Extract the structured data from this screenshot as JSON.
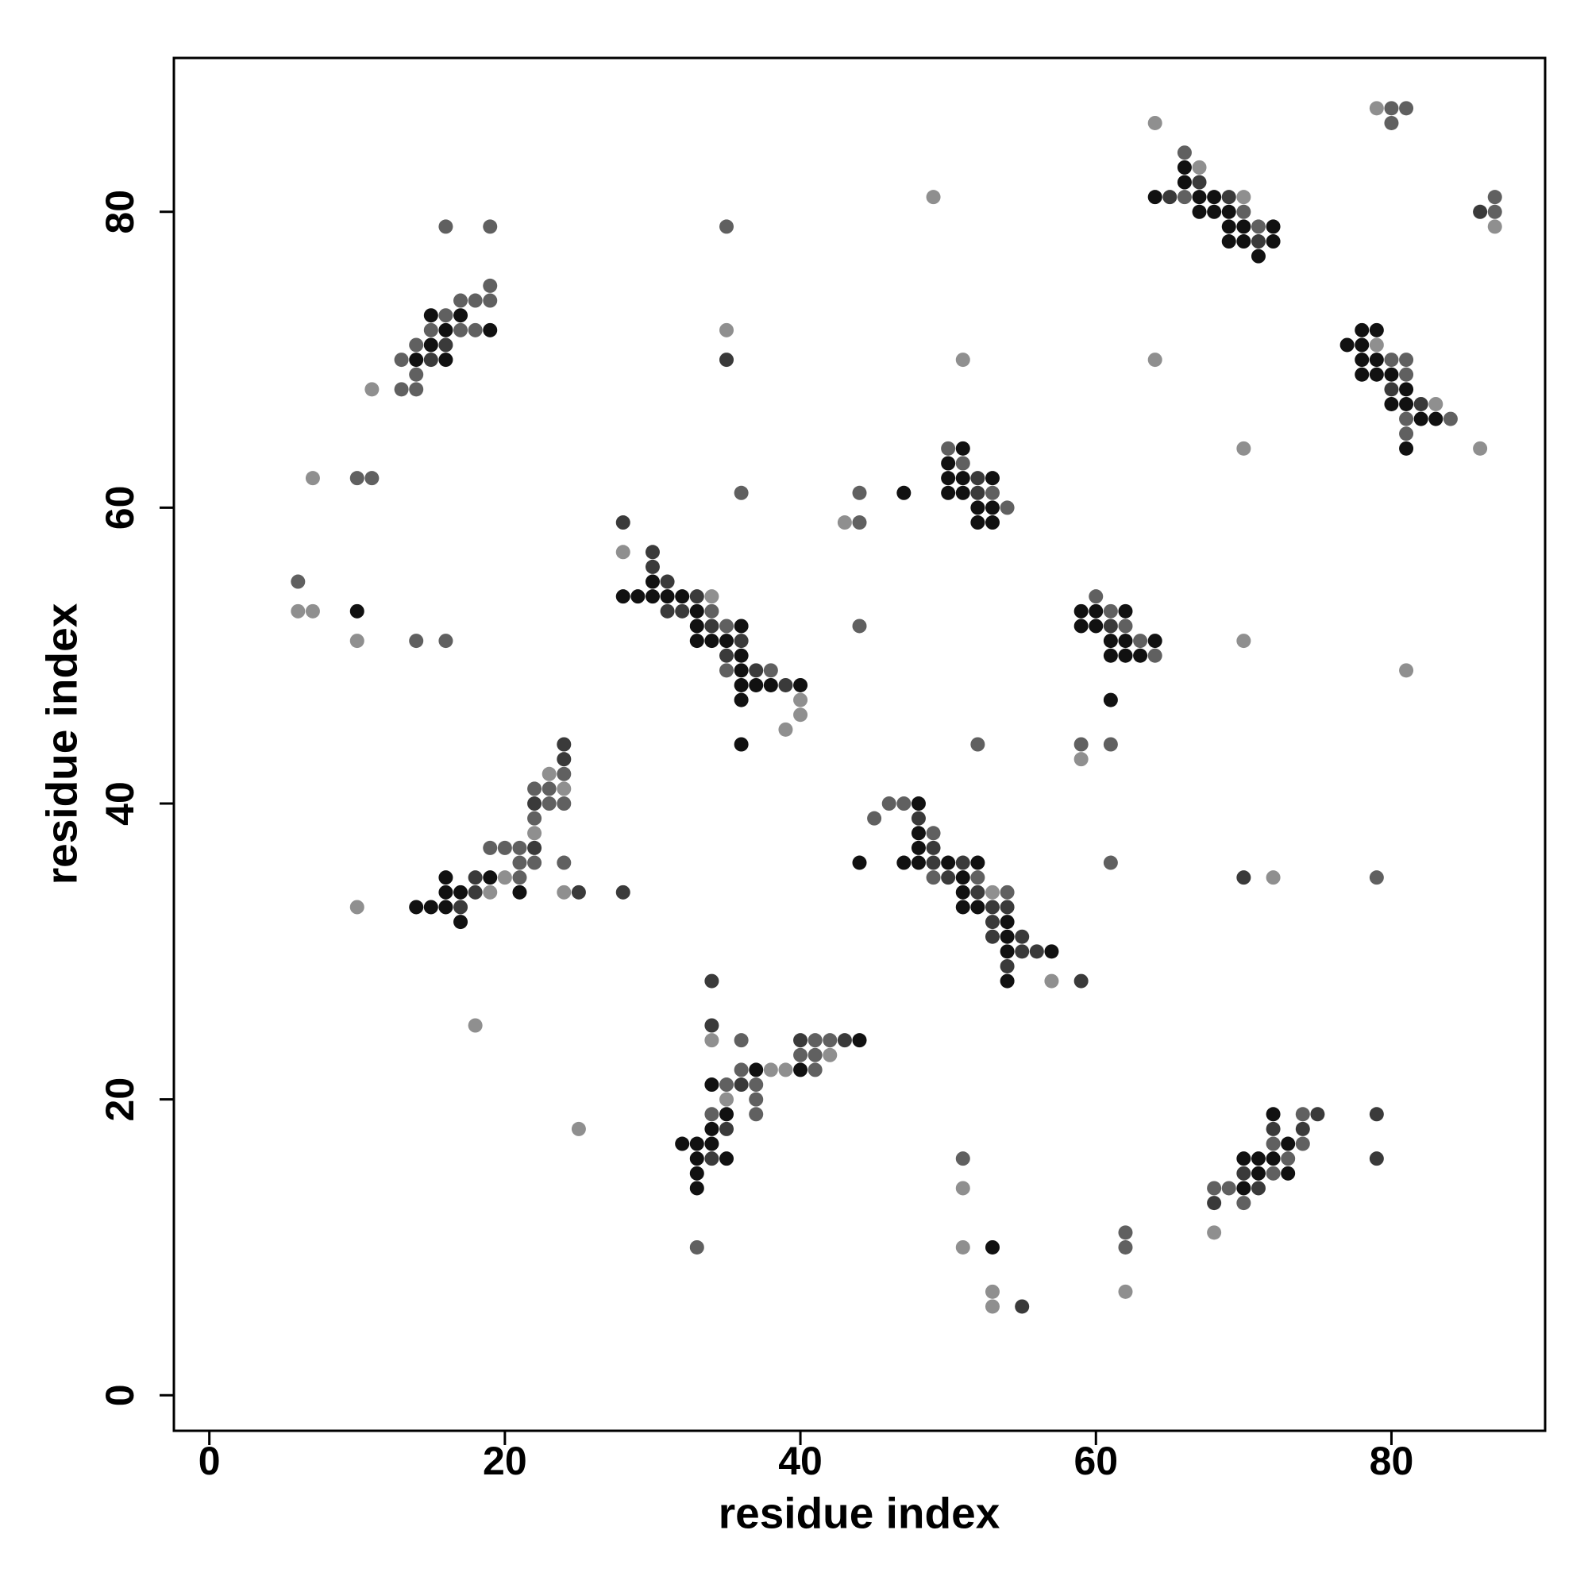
{
  "chart_data": {
    "type": "scatter",
    "xlabel": "residue index",
    "ylabel": "residue index",
    "xlim": [
      -2.4,
      90.4
    ],
    "ylim": [
      -2.4,
      90.4
    ],
    "xticks": [
      0,
      20,
      40,
      60,
      80
    ],
    "yticks": [
      0,
      20,
      40,
      60,
      80
    ],
    "grid": false,
    "series": [
      {
        "color": "#111111",
        "x": [
          15,
          17,
          16,
          19,
          15,
          14,
          16,
          10,
          30,
          28,
          29,
          30,
          31,
          32,
          33,
          33,
          36,
          33,
          34,
          35,
          36,
          36,
          36,
          37,
          38,
          40,
          36,
          36,
          16,
          19,
          16,
          17,
          21,
          14,
          15,
          16,
          17,
          37,
          40,
          34,
          35,
          34,
          32,
          33,
          34,
          33,
          35,
          33,
          33,
          44,
          48,
          48,
          48,
          44,
          47,
          48,
          50,
          52,
          51,
          51,
          51,
          52,
          54,
          54,
          54,
          57,
          54,
          51,
          50,
          50,
          51,
          53,
          50,
          51,
          47,
          52,
          53,
          52,
          53,
          59,
          60,
          62,
          59,
          60,
          61,
          62,
          64,
          61,
          62,
          63,
          61,
          66,
          66,
          64,
          67,
          68,
          67,
          68,
          69,
          69,
          70,
          72,
          69,
          70,
          72,
          71,
          78,
          79,
          77,
          78,
          78,
          79,
          78,
          79,
          80,
          81,
          80,
          81,
          82,
          83,
          81,
          72,
          73,
          70,
          71,
          72,
          71,
          73,
          70,
          53
        ],
        "y": [
          73,
          73,
          72,
          72,
          71,
          70,
          70,
          53,
          55,
          54,
          54,
          54,
          54,
          54,
          53,
          52,
          52,
          51,
          51,
          51,
          50,
          49,
          48,
          48,
          48,
          48,
          47,
          44,
          35,
          35,
          34,
          34,
          34,
          33,
          33,
          33,
          32,
          22,
          22,
          21,
          19,
          18,
          17,
          17,
          17,
          16,
          16,
          15,
          14,
          24,
          40,
          38,
          37,
          36,
          36,
          36,
          36,
          36,
          35,
          34,
          33,
          33,
          32,
          31,
          30,
          30,
          28,
          64,
          63,
          62,
          62,
          62,
          61,
          61,
          61,
          60,
          60,
          59,
          59,
          53,
          53,
          53,
          52,
          52,
          51,
          51,
          51,
          50,
          50,
          50,
          47,
          83,
          82,
          81,
          81,
          81,
          80,
          80,
          80,
          79,
          79,
          79,
          78,
          78,
          78,
          77,
          72,
          72,
          71,
          71,
          70,
          70,
          69,
          69,
          69,
          68,
          67,
          67,
          66,
          66,
          64,
          19,
          17,
          16,
          16,
          16,
          15,
          15,
          14,
          10
        ]
      },
      {
        "color": "#3a3a3a",
        "x": [
          16,
          15,
          28,
          30,
          30,
          31,
          33,
          31,
          32,
          34,
          36,
          35,
          37,
          39,
          24,
          24,
          22,
          22,
          18,
          18,
          17,
          25,
          28,
          35,
          34,
          34,
          40,
          43,
          36,
          35,
          34,
          48,
          49,
          49,
          51,
          50,
          52,
          53,
          54,
          53,
          53,
          55,
          55,
          56,
          54,
          59,
          52,
          52,
          61,
          67,
          65,
          69,
          71,
          80,
          82,
          86,
          75,
          79,
          72,
          74,
          79,
          70,
          71,
          68,
          70,
          55
        ],
        "y": [
          71,
          70,
          59,
          57,
          56,
          55,
          54,
          53,
          53,
          52,
          51,
          50,
          49,
          48,
          44,
          43,
          40,
          37,
          35,
          34,
          33,
          34,
          34,
          70,
          28,
          25,
          24,
          24,
          21,
          18,
          16,
          39,
          37,
          36,
          36,
          35,
          34,
          33,
          33,
          32,
          31,
          31,
          30,
          30,
          29,
          28,
          62,
          61,
          52,
          82,
          81,
          81,
          78,
          68,
          67,
          80,
          19,
          19,
          18,
          18,
          16,
          15,
          14,
          13,
          35,
          6
        ]
      },
      {
        "color": "#606060",
        "x": [
          16,
          19,
          19,
          18,
          19,
          17,
          16,
          15,
          17,
          18,
          14,
          13,
          14,
          13,
          14,
          10,
          11,
          6,
          14,
          16,
          34,
          35,
          35,
          38,
          36,
          35,
          44,
          44,
          44,
          24,
          22,
          23,
          23,
          24,
          22,
          19,
          20,
          21,
          21,
          22,
          24,
          21,
          36,
          41,
          42,
          40,
          41,
          36,
          41,
          35,
          37,
          37,
          34,
          37,
          33,
          46,
          47,
          45,
          49,
          49,
          52,
          54,
          50,
          51,
          53,
          54,
          60,
          61,
          62,
          63,
          64,
          59,
          61,
          52,
          61,
          66,
          66,
          70,
          71,
          80,
          81,
          80,
          87,
          87,
          80,
          81,
          81,
          81,
          84,
          81,
          74,
          72,
          74,
          73,
          72,
          68,
          69,
          70,
          79,
          51,
          62,
          62
        ],
        "y": [
          79,
          79,
          75,
          74,
          74,
          74,
          73,
          72,
          72,
          72,
          71,
          70,
          69,
          68,
          68,
          62,
          62,
          55,
          51,
          51,
          53,
          52,
          49,
          49,
          61,
          79,
          59,
          61,
          52,
          42,
          41,
          41,
          40,
          40,
          39,
          37,
          37,
          37,
          36,
          36,
          36,
          35,
          24,
          24,
          24,
          23,
          23,
          22,
          22,
          21,
          21,
          20,
          19,
          19,
          10,
          40,
          40,
          39,
          38,
          35,
          35,
          34,
          64,
          63,
          61,
          60,
          54,
          53,
          52,
          51,
          50,
          44,
          44,
          44,
          36,
          84,
          81,
          80,
          79,
          87,
          87,
          86,
          80,
          81,
          70,
          70,
          69,
          66,
          66,
          65,
          19,
          17,
          17,
          16,
          15,
          14,
          14,
          13,
          35,
          16,
          11,
          10
        ]
      },
      {
        "color": "#8f8f8f",
        "x": [
          11,
          7,
          6,
          7,
          10,
          28,
          34,
          40,
          39,
          40,
          35,
          43,
          23,
          24,
          22,
          20,
          19,
          24,
          10,
          18,
          25,
          34,
          42,
          38,
          39,
          35,
          53,
          57,
          59,
          49,
          51,
          64,
          67,
          70,
          79,
          87,
          64,
          70,
          86,
          70,
          81,
          79,
          83,
          68,
          72,
          51,
          51,
          53,
          53,
          62
        ],
        "y": [
          68,
          62,
          53,
          53,
          51,
          57,
          54,
          47,
          45,
          46,
          72,
          59,
          42,
          41,
          38,
          35,
          34,
          34,
          33,
          25,
          18,
          24,
          23,
          22,
          22,
          20,
          34,
          28,
          43,
          81,
          70,
          86,
          83,
          81,
          87,
          79,
          70,
          64,
          64,
          51,
          49,
          71,
          67,
          11,
          35,
          14,
          10,
          7,
          6,
          7
        ]
      }
    ]
  }
}
